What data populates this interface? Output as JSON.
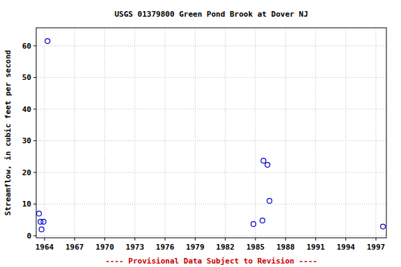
{
  "chart_data": {
    "type": "scatter",
    "title": "USGS 01379800 Green Pond Brook at Dover NJ",
    "y_label": "Streamflow, in cubic feet per second",
    "footer": "---- Provisional Data Subject to Revision ----",
    "series": [
      {
        "name": "Streamflow",
        "color": "#0000cc",
        "marker": "circle-open",
        "x": [
          1963.45,
          1963.6,
          1963.7,
          1963.9,
          1964.3,
          1984.8,
          1985.7,
          1985.8,
          1986.2,
          1986.4,
          1997.7
        ],
        "values": [
          7.0,
          4.4,
          2.0,
          4.4,
          61.5,
          3.7,
          4.8,
          23.7,
          22.4,
          11.0,
          2.9
        ]
      }
    ],
    "xlim": [
      1963.17,
      1998.04
    ],
    "ylim": [
      -0.66,
      65.7
    ],
    "xticks": [
      1964,
      1967,
      1970,
      1973,
      1976,
      1979,
      1982,
      1985,
      1988,
      1991,
      1994,
      1997
    ],
    "yticks": [
      0,
      10,
      20,
      30,
      40,
      50,
      60
    ],
    "grid": true
  }
}
